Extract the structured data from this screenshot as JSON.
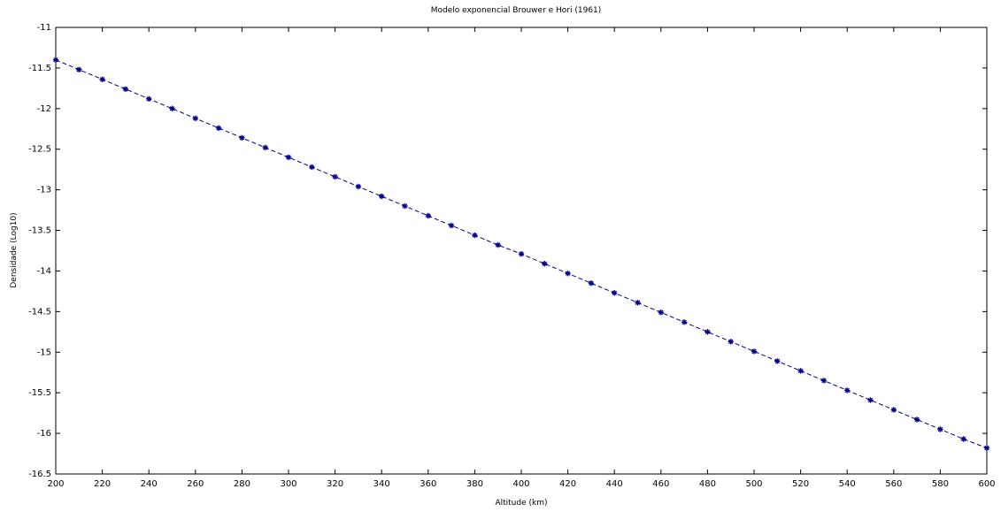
{
  "chart_data": {
    "type": "line",
    "title": "Modelo exponencial Brouwer e Hori (1961)",
    "xlabel": "Altitude (km)",
    "ylabel": "Densidade (Log10)",
    "xlim": [
      200,
      600
    ],
    "ylim": [
      -16.5,
      -11
    ],
    "x_ticks": [
      "200",
      "220",
      "240",
      "260",
      "280",
      "300",
      "320",
      "340",
      "360",
      "380",
      "400",
      "420",
      "440",
      "460",
      "480",
      "500",
      "520",
      "540",
      "560",
      "580",
      "600"
    ],
    "y_ticks": [
      "-11",
      "-11.5",
      "-12",
      "-12.5",
      "-13",
      "-13.5",
      "-14",
      "-14.5",
      "-15",
      "-15.5",
      "-16",
      "-16.5"
    ],
    "grid": false,
    "series": [
      {
        "style": "dashed-line-with-star-markers",
        "color": "#00008b",
        "x": [
          200,
          210,
          220,
          230,
          240,
          250,
          260,
          270,
          280,
          290,
          300,
          310,
          320,
          330,
          340,
          350,
          360,
          370,
          380,
          390,
          400,
          410,
          420,
          430,
          440,
          450,
          460,
          470,
          480,
          490,
          500,
          510,
          520,
          530,
          540,
          550,
          560,
          570,
          580,
          590,
          600
        ],
        "y": [
          -11.4,
          -11.52,
          -11.64,
          -11.76,
          -11.88,
          -12.0,
          -12.12,
          -12.24,
          -12.36,
          -12.48,
          -12.6,
          -12.72,
          -12.84,
          -12.96,
          -13.08,
          -13.2,
          -13.32,
          -13.44,
          -13.56,
          -13.68,
          -13.79,
          -13.91,
          -14.03,
          -14.15,
          -14.27,
          -14.39,
          -14.51,
          -14.63,
          -14.75,
          -14.87,
          -14.99,
          -15.11,
          -15.23,
          -15.35,
          -15.47,
          -15.59,
          -15.71,
          -15.83,
          -15.95,
          -16.07,
          -16.18
        ]
      }
    ]
  }
}
